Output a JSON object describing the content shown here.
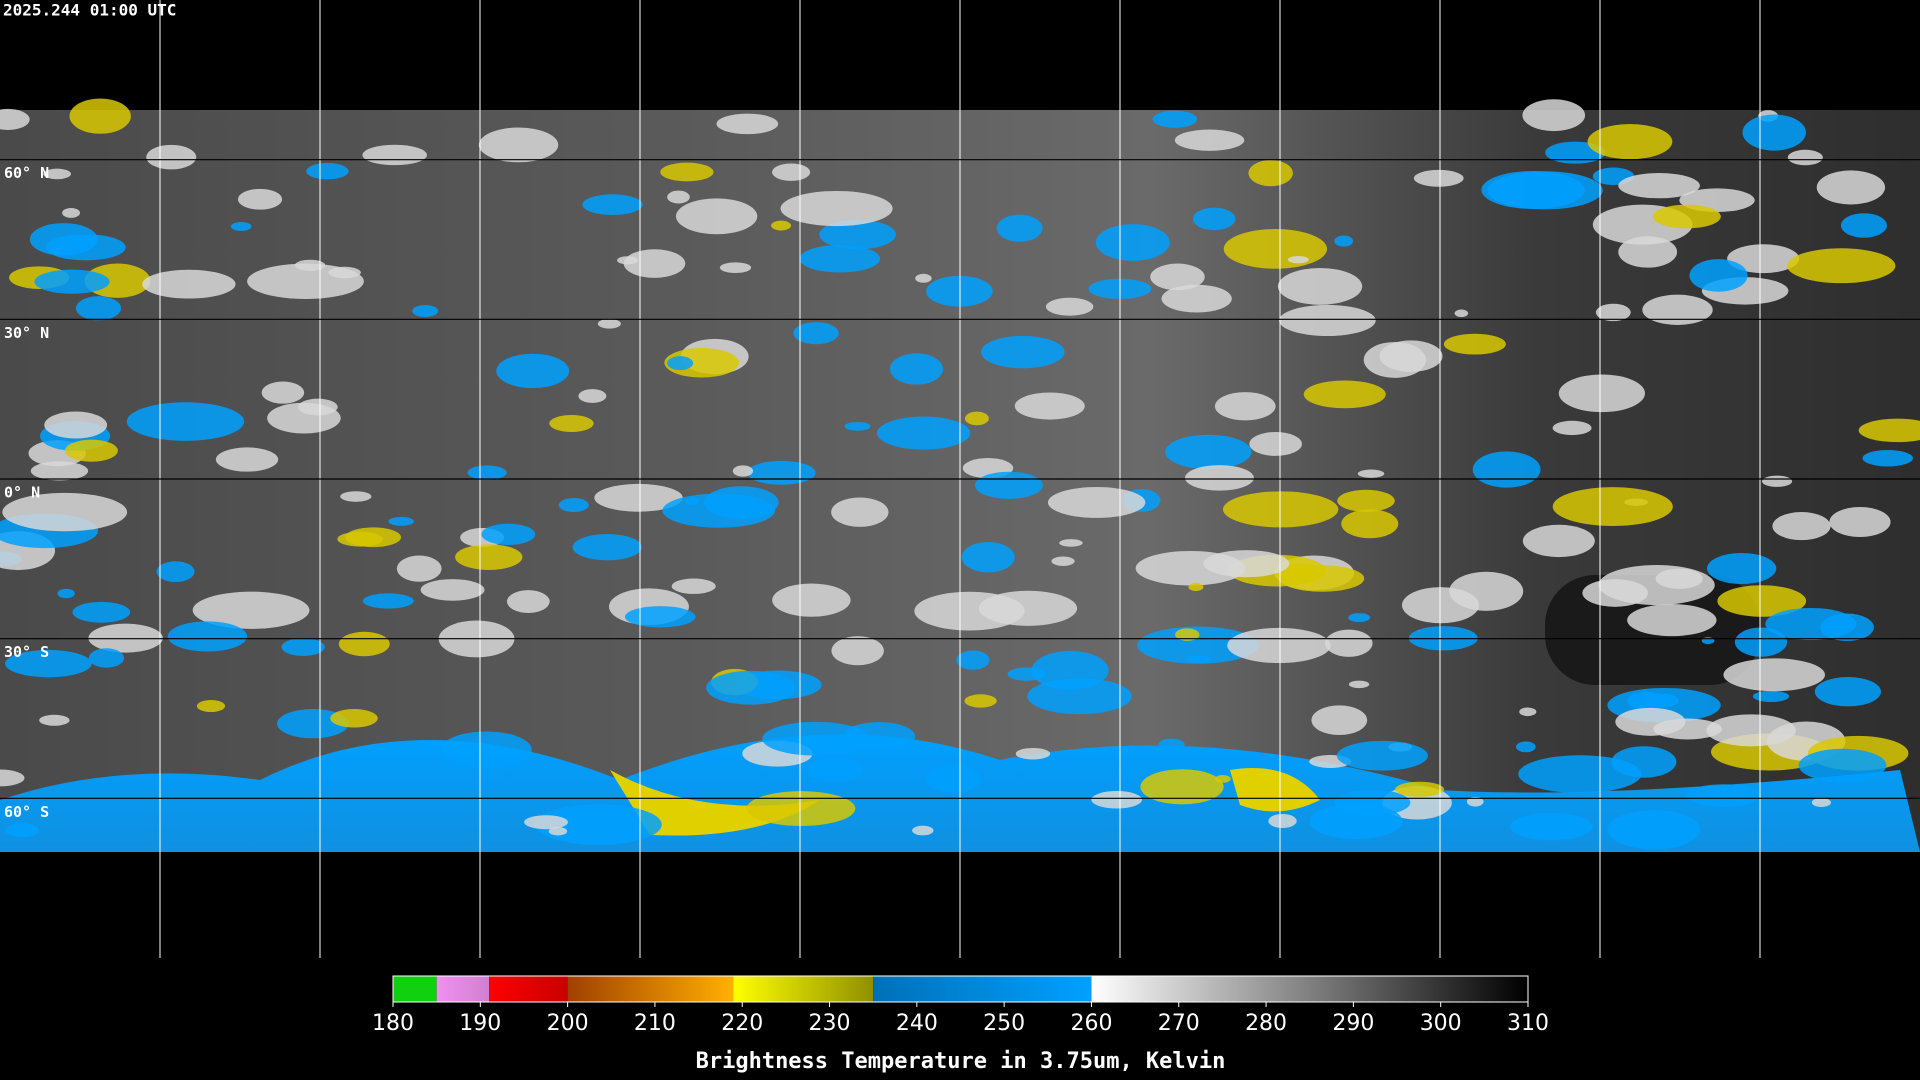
{
  "timestamp": "2025.244 01:00 UTC",
  "latitude_lines": [
    {
      "value": 60,
      "label": "60° N"
    },
    {
      "value": 30,
      "label": "30° N"
    },
    {
      "value": 0,
      "label": "0° N"
    },
    {
      "value": -30,
      "label": "30° S"
    },
    {
      "value": -60,
      "label": "60° S"
    }
  ],
  "colorbar": {
    "title": "Brightness Temperature in 3.75um, Kelvin",
    "range": [
      180,
      310
    ],
    "ticks": [
      180,
      190,
      200,
      210,
      220,
      230,
      240,
      250,
      260,
      270,
      280,
      290,
      300,
      310
    ],
    "segments": [
      {
        "from": 180,
        "to": 185,
        "colors": [
          "#10d010",
          "#10d010"
        ]
      },
      {
        "from": 185,
        "to": 191,
        "colors": [
          "#f090f0",
          "#d080d0"
        ]
      },
      {
        "from": 191,
        "to": 200,
        "colors": [
          "#ff0000",
          "#c80000"
        ]
      },
      {
        "from": 200,
        "to": 219,
        "colors": [
          "#a04000",
          "#ffb000"
        ]
      },
      {
        "from": 219,
        "to": 235,
        "colors": [
          "#ffff00",
          "#909000"
        ]
      },
      {
        "from": 235,
        "to": 260,
        "colors": [
          "#0070b8",
          "#00a0ff"
        ]
      },
      {
        "from": 260,
        "to": 310,
        "colors": [
          "#ffffff",
          "#000000"
        ]
      }
    ]
  }
}
